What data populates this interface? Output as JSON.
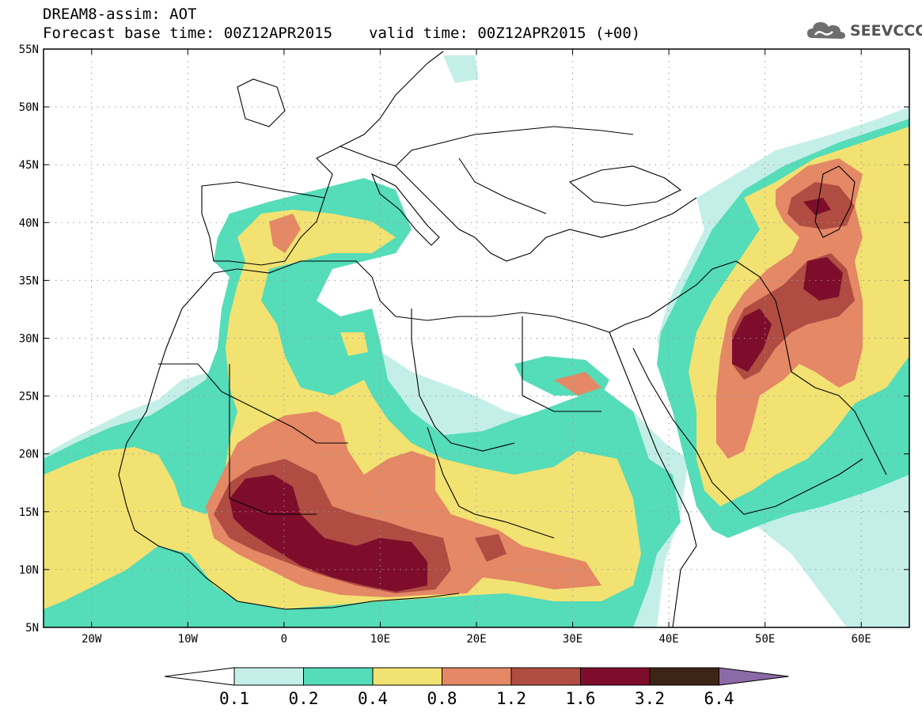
{
  "header": {
    "title_line1": "DREAM8-assim: AOT",
    "base_label": "Forecast base time: 00Z12APR2015",
    "valid_label": "valid time: 00Z12APR2015 (+00)"
  },
  "logo": {
    "text": "SEEVCCC",
    "icon": "cloud-logo-icon"
  },
  "map": {
    "lat_labels": [
      "55N",
      "50N",
      "45N",
      "40N",
      "35N",
      "30N",
      "25N",
      "20N",
      "15N",
      "10N",
      "5N"
    ],
    "lon_labels": [
      "20W",
      "10W",
      "0",
      "10E",
      "20E",
      "30E",
      "40E",
      "50E",
      "60E"
    ],
    "lat_values": [
      55,
      50,
      45,
      40,
      35,
      30,
      25,
      20,
      15,
      10,
      5
    ],
    "lon_values": [
      -20,
      -10,
      0,
      10,
      20,
      30,
      40,
      50,
      60
    ],
    "extent": {
      "lon_min": -25,
      "lon_max": 65,
      "lat_min": 5,
      "lat_max": 55
    },
    "grid": "dotted",
    "colors": {
      "c0": "#c4efe8",
      "c1": "#55dcb8",
      "c2": "#f2e272",
      "c3": "#e48866",
      "c4": "#b04c42",
      "c5": "#7e0d2c",
      "c6": "#3c2416",
      "over": "#8c6aa8"
    }
  },
  "colorbar": {
    "labels": [
      "0.1",
      "0.2",
      "0.4",
      "0.8",
      "1.2",
      "1.6",
      "3.2",
      "6.4"
    ],
    "colors": [
      "#c4efe8",
      "#55dcb8",
      "#f2e272",
      "#e48866",
      "#b04c42",
      "#7e0d2c",
      "#3c2416"
    ],
    "under_color": "#ffffff",
    "over_color": "#8c6aa8"
  }
}
